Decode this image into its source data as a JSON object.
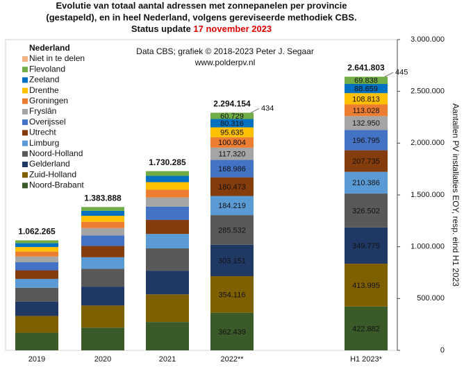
{
  "chart_data": {
    "type": "stacked_bar",
    "title": [
      "Evolutie van totaal aantal adressen met zonnepanelen per provincie",
      "(gestapeld), en in heel Nederland, volgens gereviseerde methodiek CBS."
    ],
    "title_status": "Status update ",
    "title_date": "17 november 2023",
    "annotation": [
      "Data CBS; grafiek © 2018-2023 Peter J. Segaar",
      "www.polderpv.nl"
    ],
    "legend_title": "Nederland",
    "y2_label": "Aantallen PV installaties EOY, resp. eind H1 2023",
    "categories": [
      "2019",
      "2020",
      "2021",
      "2022**",
      "H1 2023*"
    ],
    "series": [
      {
        "name": "Noord-Brabant",
        "color": "#3b5a2a",
        "values": [
          171000,
          218938,
          273585,
          362439,
          422882
        ],
        "value_labels": [
          null,
          null,
          null,
          "362.439",
          "422.882"
        ]
      },
      {
        "name": "Zuid-Holland",
        "color": "#7f6000",
        "values": [
          161000,
          213600,
          267000,
          354116,
          413995
        ],
        "value_labels": [
          null,
          null,
          null,
          "354.116",
          "413.995"
        ]
      },
      {
        "name": "Gelderland",
        "color": "#203864",
        "values": [
          139000,
          182800,
          228600,
          303151,
          349775
        ],
        "value_labels": [
          null,
          null,
          null,
          "303.151",
          "349.775"
        ]
      },
      {
        "name": "Noord-Holland",
        "color": "#595959",
        "values": [
          133000,
          172200,
          215300,
          285532,
          326502
        ],
        "value_labels": [
          null,
          null,
          null,
          "285.532",
          "326.502"
        ]
      },
      {
        "name": "Limburg",
        "color": "#5b9bd5",
        "values": [
          86000,
          111100,
          138900,
          184219,
          210386
        ],
        "value_labels": [
          null,
          null,
          null,
          "184.219",
          "210.386"
        ]
      },
      {
        "name": "Utrecht",
        "color": "#843c0c",
        "values": [
          83000,
          108800,
          136100,
          180473,
          207735
        ],
        "value_labels": [
          null,
          null,
          null,
          "180.473",
          "207.735"
        ]
      },
      {
        "name": "Overijssel",
        "color": "#4472c4",
        "values": [
          78000,
          101900,
          127400,
          168986,
          196795
        ],
        "value_labels": [
          null,
          null,
          null,
          "168.986",
          "196.795"
        ]
      },
      {
        "name": "Fryslân",
        "color": "#a5a5a5",
        "values": [
          55000,
          70700,
          88500,
          117320,
          132950
        ],
        "value_labels": [
          null,
          null,
          null,
          "117.320",
          "132.950"
        ]
      },
      {
        "name": "Groningen",
        "color": "#ed7d31",
        "values": [
          47000,
          60800,
          76000,
          100804,
          113028
        ],
        "value_labels": [
          null,
          null,
          null,
          "100.804",
          "113.028"
        ]
      },
      {
        "name": "Drenthe",
        "color": "#ffc000",
        "values": [
          44000,
          57700,
          72100,
          95635,
          108813
        ],
        "value_labels": [
          null,
          null,
          null,
          "95.635",
          "108.813"
        ]
      },
      {
        "name": "Zeeland",
        "color": "#0070c0",
        "values": [
          37000,
          48400,
          60600,
          80316,
          88659
        ],
        "value_labels": [
          null,
          null,
          null,
          "80.316",
          "88.659"
        ]
      },
      {
        "name": "Flevoland",
        "color": "#70ad47",
        "values": [
          28000,
          36600,
          45800,
          60729,
          69838
        ],
        "value_labels": [
          null,
          null,
          null,
          "60.729",
          "69.838"
        ]
      },
      {
        "name": "Niet in te delen",
        "color": "#f4b183",
        "values": [
          265,
          350,
          400,
          434,
          445
        ],
        "value_labels": [
          null,
          null,
          null,
          "434",
          "445"
        ]
      }
    ],
    "totals": [
      1062265,
      1383888,
      1730285,
      2294154,
      2641803
    ],
    "total_labels": [
      "1.062.265",
      "1.383.888",
      "1.730.285",
      "2.294.154",
      "2.641.803"
    ],
    "y2lim": [
      0,
      3000000
    ],
    "y2ticks": [
      0,
      {
        "value": 500000,
        "label": "500.000"
      },
      {
        "value": 1000000,
        "label": "1.000.000"
      },
      {
        "value": 1500000,
        "label": "1.500.000"
      },
      {
        "value": 2000000,
        "label": "2.000.000"
      },
      {
        "value": 2500000,
        "label": "2.500.000"
      },
      {
        "value": 3000000,
        "label": "3.000.000"
      }
    ],
    "grid": false
  }
}
